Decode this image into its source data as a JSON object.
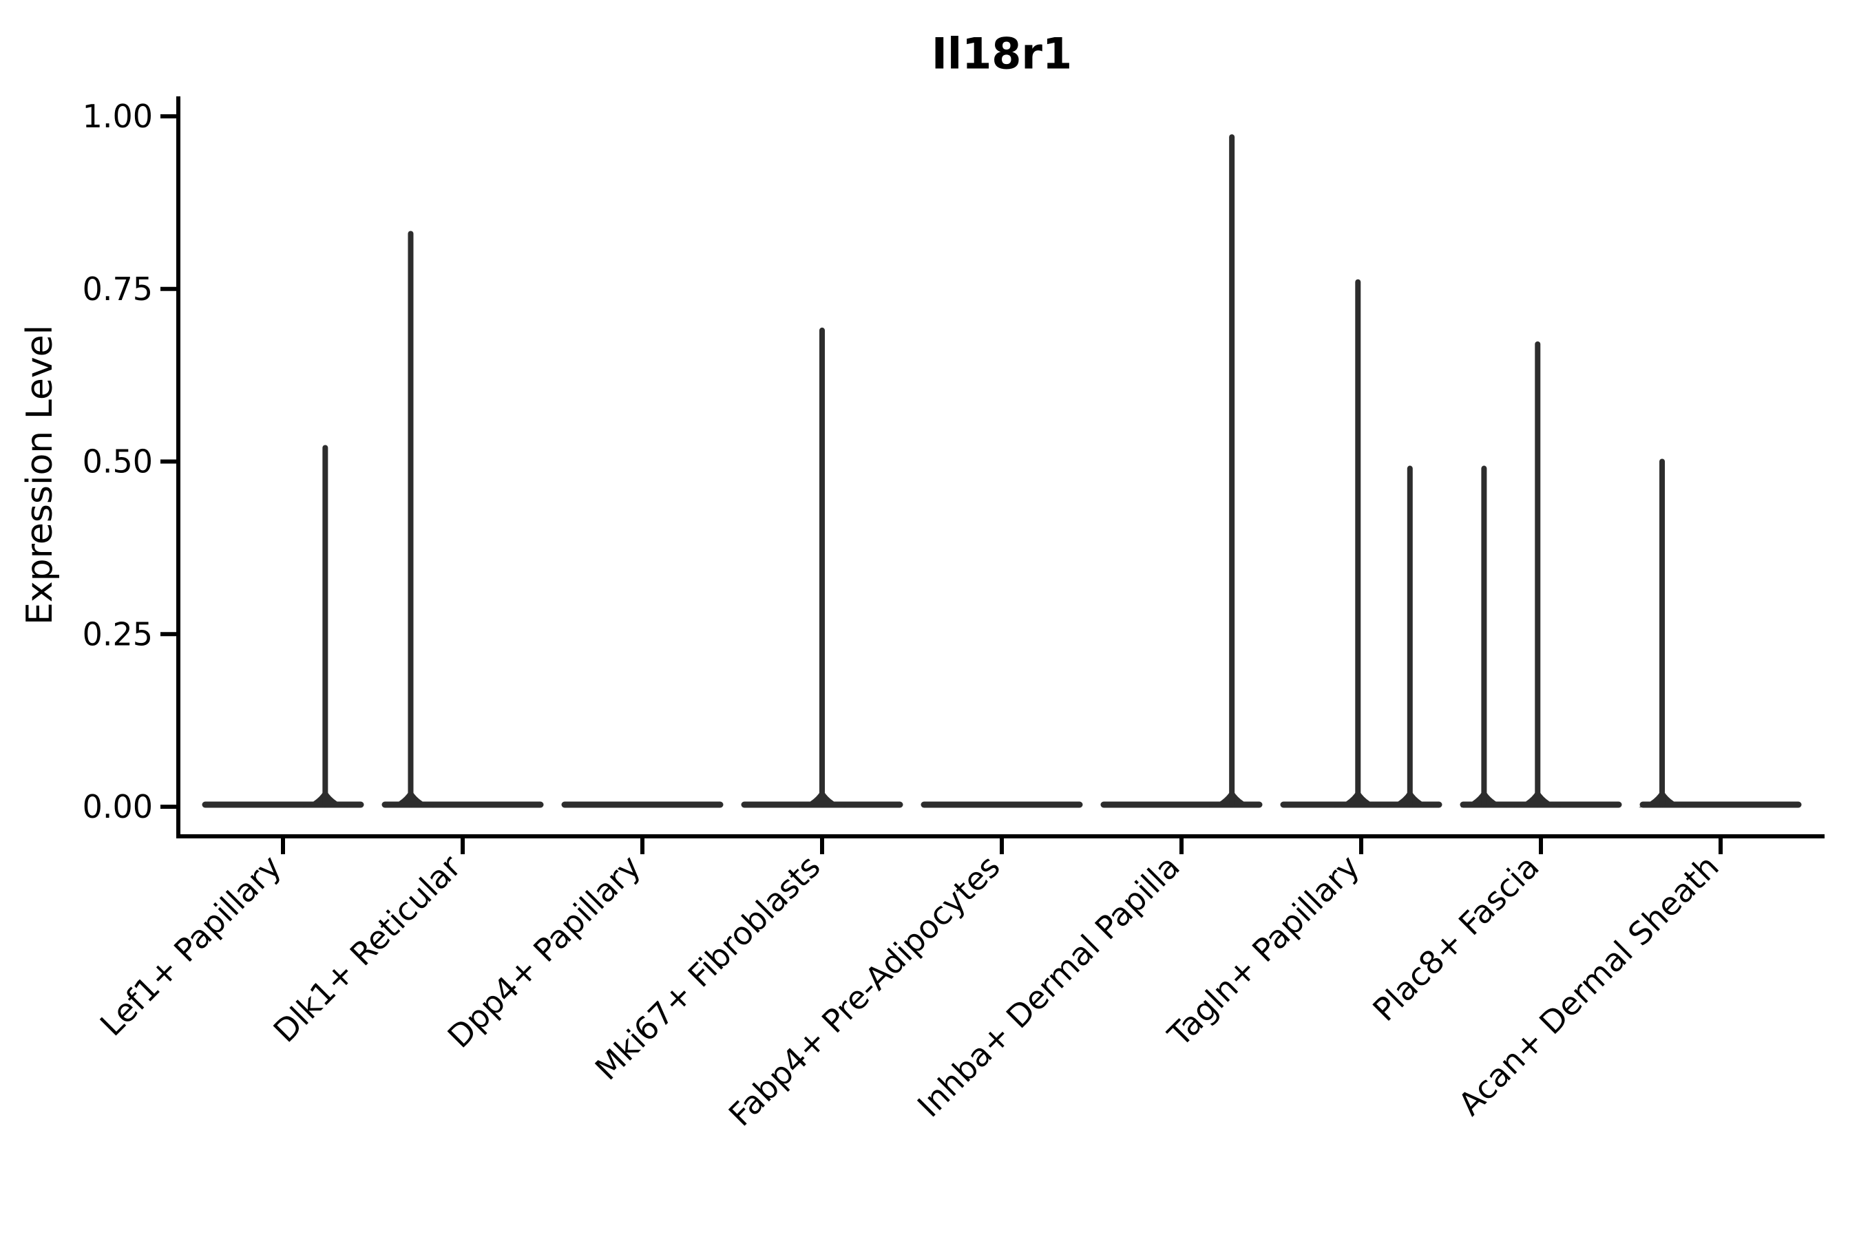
{
  "chart_data": {
    "type": "violin",
    "title": "Il18r1",
    "ylabel": "Expression Level",
    "xlabel": "",
    "background": "#ffffff",
    "grid": false,
    "legend": null,
    "ylim": [
      0.0,
      1.0
    ],
    "yticks": [
      {
        "value": 0.0,
        "label": "0.00"
      },
      {
        "value": 0.25,
        "label": "0.25"
      },
      {
        "value": 0.5,
        "label": "0.50"
      },
      {
        "value": 0.75,
        "label": "0.75"
      },
      {
        "value": 1.0,
        "label": "1.00"
      }
    ],
    "categories": [
      "Lef1+ Papillary",
      "Dlk1+ Reticular",
      "Dpp4+ Papillary",
      "Mki67+ Fibroblasts",
      "Fabp4+ Pre-Adipocytes",
      "Inhba+ Dermal Papilla",
      "Tagln+ Papillary",
      "Plac8+ Fascia",
      "Acan+ Dermal Sheath"
    ],
    "violins": [
      {
        "category": "Lef1+ Papillary",
        "baseline_value": 0.0,
        "spikes": [
          {
            "x_frac": 0.76,
            "value": 0.52
          }
        ]
      },
      {
        "category": "Dlk1+ Reticular",
        "baseline_value": 0.0,
        "spikes": [
          {
            "x_frac": 0.18,
            "value": 0.83
          }
        ]
      },
      {
        "category": "Dpp4+ Papillary",
        "baseline_value": 0.0,
        "spikes": []
      },
      {
        "category": "Mki67+ Fibroblasts",
        "baseline_value": 0.0,
        "spikes": [
          {
            "x_frac": 0.5,
            "value": 0.69
          }
        ]
      },
      {
        "category": "Fabp4+ Pre-Adipocytes",
        "baseline_value": 0.0,
        "spikes": []
      },
      {
        "category": "Inhba+ Dermal Papilla",
        "baseline_value": 0.0,
        "spikes": [
          {
            "x_frac": 0.81,
            "value": 0.97
          }
        ]
      },
      {
        "category": "Tagln+ Papillary",
        "baseline_value": 0.0,
        "spikes": [
          {
            "x_frac": 0.48,
            "value": 0.76
          },
          {
            "x_frac": 0.8,
            "value": 0.49
          }
        ]
      },
      {
        "category": "Plac8+ Fascia",
        "baseline_value": 0.0,
        "spikes": [
          {
            "x_frac": 0.15,
            "value": 0.49
          },
          {
            "x_frac": 0.48,
            "value": 0.67
          }
        ]
      },
      {
        "category": "Acan+ Dermal Sheath",
        "baseline_value": 0.0,
        "spikes": [
          {
            "x_frac": 0.14,
            "value": 0.5
          }
        ]
      }
    ],
    "colors": {
      "violin": "#2d2d2d",
      "axis": "#000000",
      "text": "#000000",
      "background": "#ffffff"
    }
  }
}
